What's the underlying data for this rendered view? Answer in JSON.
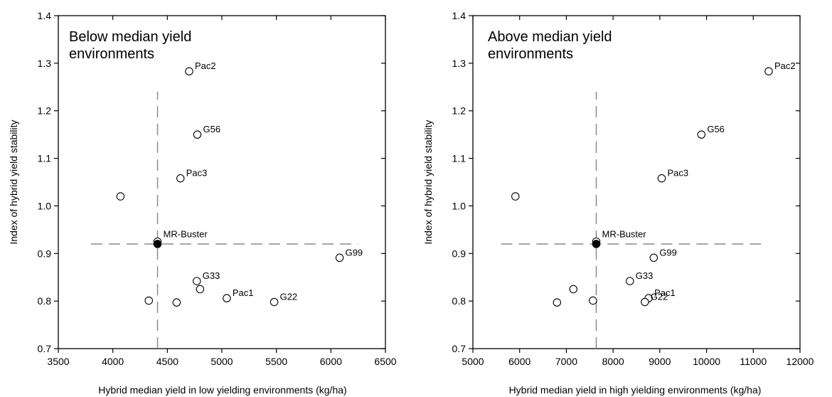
{
  "chart_data": [
    {
      "type": "scatter",
      "title_lines": [
        "Below median yield",
        "environments"
      ],
      "xlabel": "Hybrid median yield in low yielding environments (kg/ha)",
      "ylabel": "Index of hybrid yield stability",
      "xlim": [
        3500,
        6500
      ],
      "ylim": [
        0.7,
        1.4
      ],
      "xticks": [
        3500,
        4000,
        4500,
        5000,
        5500,
        6000,
        6500
      ],
      "yticks": [
        0.7,
        0.8,
        0.9,
        1.0,
        1.1,
        1.2,
        1.3,
        1.4
      ],
      "ytick_labels": [
        "0.7",
        "0.8",
        "0.9",
        "1.0",
        "1.1",
        "1.2",
        "1.3",
        "1.4"
      ],
      "median_x": 4410,
      "median_y": 0.92,
      "ref_x_range": [
        3800,
        6250
      ],
      "ref_y_range": [
        0.7,
        1.24
      ],
      "grid": false,
      "points": [
        {
          "x": 4700,
          "y": 1.283,
          "label": "Pac2",
          "filled": false
        },
        {
          "x": 4775,
          "y": 1.15,
          "label": "G56",
          "filled": false
        },
        {
          "x": 4620,
          "y": 1.058,
          "label": "Pac3",
          "filled": false
        },
        {
          "x": 4070,
          "y": 1.02,
          "label": "",
          "filled": false
        },
        {
          "x": 4410,
          "y": 0.925,
          "label": "MR-Buster",
          "filled": false
        },
        {
          "x": 4410,
          "y": 0.92,
          "label": "",
          "filled": true
        },
        {
          "x": 6080,
          "y": 0.891,
          "label": "G99",
          "filled": false
        },
        {
          "x": 4770,
          "y": 0.842,
          "label": "G33",
          "filled": false
        },
        {
          "x": 4800,
          "y": 0.825,
          "label": "",
          "filled": false
        },
        {
          "x": 5045,
          "y": 0.806,
          "label": "Pac1",
          "filled": false
        },
        {
          "x": 5480,
          "y": 0.798,
          "label": "G22",
          "filled": false
        },
        {
          "x": 4330,
          "y": 0.801,
          "label": "",
          "filled": false
        },
        {
          "x": 4585,
          "y": 0.797,
          "label": "",
          "filled": false
        }
      ]
    },
    {
      "type": "scatter",
      "title_lines": [
        "Above median yield",
        "environments"
      ],
      "xlabel": "Hybrid median yield in high yielding environments (kg/ha)",
      "ylabel": "Index of hybrid yield stability",
      "xlim": [
        5000,
        12000
      ],
      "ylim": [
        0.7,
        1.4
      ],
      "xticks": [
        5000,
        6000,
        7000,
        8000,
        9000,
        10000,
        11000,
        12000
      ],
      "yticks": [
        0.7,
        0.8,
        0.9,
        1.0,
        1.1,
        1.2,
        1.3,
        1.4
      ],
      "ytick_labels": [
        "0.7",
        "0.8",
        "0.9",
        "1.0",
        "1.1",
        "1.2",
        "1.3",
        "1.4"
      ],
      "median_x": 7640,
      "median_y": 0.92,
      "ref_x_range": [
        5600,
        11250
      ],
      "ref_y_range": [
        0.7,
        1.24
      ],
      "grid": false,
      "points": [
        {
          "x": 11330,
          "y": 1.283,
          "label": "Pac2",
          "filled": false
        },
        {
          "x": 9890,
          "y": 1.15,
          "label": "G56",
          "filled": false
        },
        {
          "x": 9040,
          "y": 1.058,
          "label": "Pac3",
          "filled": false
        },
        {
          "x": 5910,
          "y": 1.02,
          "label": "",
          "filled": false
        },
        {
          "x": 7640,
          "y": 0.925,
          "label": "MR-Buster",
          "filled": false
        },
        {
          "x": 7640,
          "y": 0.92,
          "label": "",
          "filled": true
        },
        {
          "x": 8870,
          "y": 0.891,
          "label": "G99",
          "filled": false
        },
        {
          "x": 8360,
          "y": 0.842,
          "label": "G33",
          "filled": false
        },
        {
          "x": 7150,
          "y": 0.825,
          "label": "",
          "filled": false
        },
        {
          "x": 8760,
          "y": 0.806,
          "label": "Pac1",
          "filled": false
        },
        {
          "x": 8680,
          "y": 0.798,
          "label": "G22",
          "filled": false
        },
        {
          "x": 6800,
          "y": 0.797,
          "label": "",
          "filled": false
        },
        {
          "x": 7570,
          "y": 0.801,
          "label": "",
          "filled": false
        }
      ]
    }
  ]
}
